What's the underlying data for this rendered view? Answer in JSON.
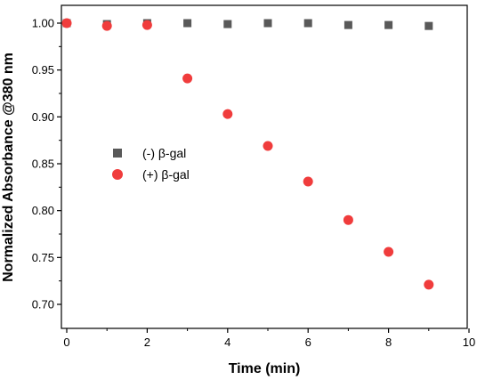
{
  "chart_data": {
    "type": "scatter",
    "title": "",
    "xlabel": "Time (min)",
    "ylabel": "Normalized Absorbance @380 nm",
    "xlim": [
      0,
      10
    ],
    "ylim": [
      0.68,
      1.025
    ],
    "x_ticks": [
      "0",
      "2",
      "4",
      "6",
      "8",
      "10"
    ],
    "y_ticks": [
      "0.70",
      "0.75",
      "0.80",
      "0.85",
      "0.90",
      "0.95",
      "1.00"
    ],
    "grid": false,
    "legend_position": "middle-left",
    "series": [
      {
        "name": "(-) β-gal",
        "marker": "square",
        "color": "#595959",
        "x": [
          0,
          1,
          2,
          3,
          4,
          5,
          6,
          7,
          8,
          9
        ],
        "y": [
          1.0,
          0.999,
          1.0,
          1.0,
          0.999,
          1.0,
          1.0,
          0.998,
          0.998,
          0.997
        ]
      },
      {
        "name": "(+) β-gal",
        "marker": "circle",
        "color": "#f03c3c",
        "x": [
          0,
          1,
          2,
          3,
          4,
          5,
          6,
          7,
          8,
          9
        ],
        "y": [
          1.0,
          0.997,
          0.998,
          0.941,
          0.903,
          0.869,
          0.831,
          0.79,
          0.756,
          0.721
        ]
      }
    ]
  }
}
